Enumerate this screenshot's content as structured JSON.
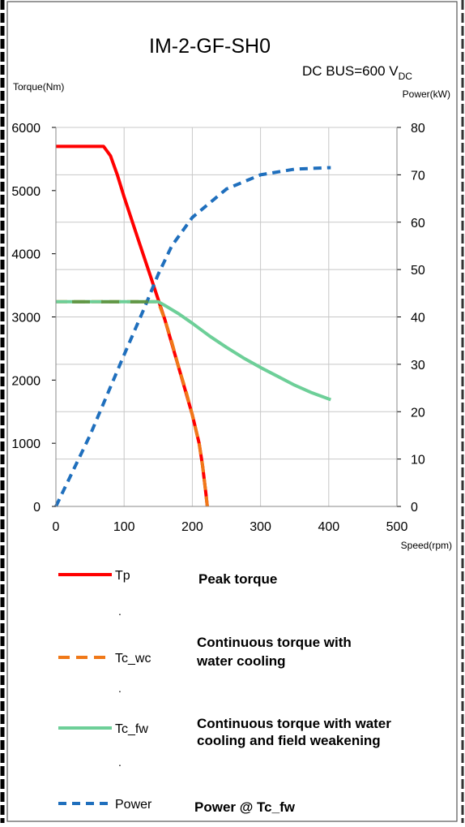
{
  "chart_data": {
    "type": "line",
    "title": "IM-2-GF-SH0",
    "subtitle": {
      "prefix": "DC BUS=600 V",
      "sub": "DC"
    },
    "left_axis_label": "Torque(Nm)",
    "right_axis_label": "Power(kW)",
    "x_axis_label": "Speed(rpm)",
    "x_ticks": [
      "0",
      "100",
      "200",
      "300",
      "400",
      "500"
    ],
    "y_left_ticks": [
      "0",
      "1000",
      "2000",
      "3000",
      "4000",
      "5000",
      "6000"
    ],
    "y_right_ticks": [
      "0",
      "10",
      "20",
      "30",
      "40",
      "50",
      "60",
      "70",
      "80"
    ],
    "xlim": [
      0,
      500
    ],
    "ylim_left": [
      0,
      6000
    ],
    "ylim_right": [
      0,
      80
    ],
    "grid": true,
    "series": [
      {
        "name": "Tp",
        "axis": "left",
        "color": "#ff0000",
        "dash": "solid",
        "x": [
          0,
          70,
          80,
          90,
          100,
          120,
          140,
          160,
          180,
          200,
          210,
          215,
          220,
          222
        ],
        "y": [
          5700,
          5700,
          5550,
          5250,
          4900,
          4250,
          3600,
          2950,
          2200,
          1450,
          1000,
          650,
          200,
          0
        ]
      },
      {
        "name": "Tc_wc",
        "axis": "left",
        "color": "#f07818",
        "dash": "dashed",
        "x": [
          0,
          150,
          160,
          170,
          180,
          190,
          200,
          210,
          215,
          220,
          222
        ],
        "y": [
          3240,
          3240,
          2950,
          2600,
          2200,
          1850,
          1450,
          1000,
          650,
          200,
          0
        ]
      },
      {
        "name": "Tc_fw",
        "axis": "left",
        "color": "#6dcf98",
        "dash": "solid",
        "x": [
          0,
          150,
          160,
          180,
          200,
          225,
          250,
          275,
          300,
          325,
          350,
          375,
          403
        ],
        "y": [
          3240,
          3240,
          3180,
          3050,
          2900,
          2700,
          2520,
          2350,
          2200,
          2060,
          1920,
          1800,
          1690
        ]
      },
      {
        "name": "Power",
        "axis": "right",
        "color": "#1f6fbd",
        "dash": "short-dash",
        "x": [
          0,
          50,
          100,
          130,
          150,
          170,
          200,
          250,
          300,
          350,
          400,
          403
        ],
        "y": [
          0,
          15,
          32,
          42,
          49,
          55,
          61,
          67,
          70,
          71.2,
          71.5,
          71.5
        ]
      }
    ],
    "legend": [
      {
        "key": "Tp",
        "label": "Tp",
        "description": "Peak torque",
        "color": "#ff0000",
        "dash": "solid"
      },
      {
        "key": "Tc_wc",
        "label": "Tc_wc",
        "description": "Continuous torque with water cooling",
        "color": "#f07818",
        "dash": "dashed"
      },
      {
        "key": "Tc_fw",
        "label": "Tc_fw",
        "description": "Continuous torque with water cooling and field weakening",
        "color": "#6dcf98",
        "dash": "solid"
      },
      {
        "key": "Power",
        "label": "Power",
        "description": "Power @ Tc_fw",
        "color": "#1f6fbd",
        "dash": "short-dash"
      }
    ],
    "legend_separator": "."
  }
}
